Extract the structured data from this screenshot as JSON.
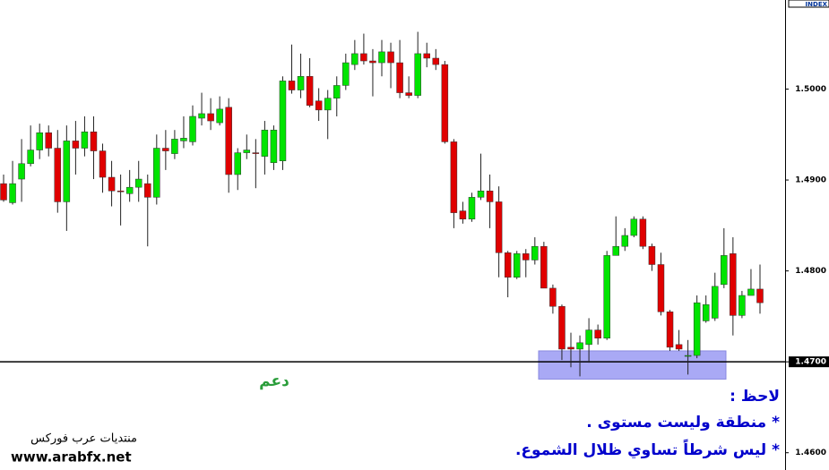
{
  "chart_data": {
    "type": "candlestick",
    "axis_label": "INDEX",
    "open": [
      1.4896,
      1.4875,
      1.4901,
      1.4918,
      1.4933,
      1.4952,
      1.4935,
      1.4876,
      1.4943,
      1.4935,
      1.4953,
      1.4932,
      1.4903,
      1.4888,
      1.4885,
      1.4892,
      1.4896,
      1.4881,
      1.4935,
      1.4929,
      1.4943,
      1.4942,
      1.4968,
      1.4973,
      1.4963,
      1.498,
      1.4906,
      1.493,
      1.493,
      1.4926,
      1.4919,
      1.4921,
      1.5009,
      1.4999,
      1.5014,
      1.4987,
      1.4977,
      1.499,
      1.5004,
      1.5027,
      1.5039,
      1.5031,
      1.5029,
      1.5041,
      1.5029,
      1.4996,
      1.4993,
      1.5039,
      1.5034,
      1.5027,
      1.4942,
      1.4866,
      1.4857,
      1.4881,
      1.4888,
      1.4876,
      1.482,
      1.4793,
      1.4819,
      1.4812,
      1.4827,
      1.4781,
      1.4761,
      1.4716,
      1.4714,
      1.4719,
      1.4735,
      1.4726,
      1.4817,
      1.4827,
      1.4839,
      1.4857,
      1.4827,
      1.4807,
      1.4755,
      1.4719,
      1.4706,
      1.4707,
      1.4745,
      1.4748,
      1.4785,
      1.4819,
      1.4751,
      1.4773,
      1.478
    ],
    "high": [
      1.4906,
      1.4921,
      1.4945,
      1.496,
      1.4962,
      1.496,
      1.4955,
      1.496,
      1.4965,
      1.497,
      1.497,
      1.494,
      1.4921,
      1.4906,
      1.4911,
      1.4921,
      1.4906,
      1.495,
      1.4955,
      1.4955,
      1.497,
      1.4982,
      1.4996,
      1.499,
      1.4992,
      1.499,
      1.4935,
      1.495,
      1.4945,
      1.4965,
      1.496,
      1.5014,
      1.5049,
      1.5039,
      1.5034,
      1.5001,
      1.4999,
      1.5014,
      1.5039,
      1.5054,
      1.5061,
      1.5044,
      1.5054,
      1.5051,
      1.5054,
      1.5014,
      1.5063,
      1.5051,
      1.5044,
      1.5031,
      1.4945,
      1.4876,
      1.4886,
      1.4929,
      1.4906,
      1.4893,
      1.4822,
      1.4822,
      1.4824,
      1.4837,
      1.4832,
      1.4785,
      1.4763,
      1.4732,
      1.4729,
      1.4748,
      1.4741,
      1.4822,
      1.486,
      1.4847,
      1.486,
      1.486,
      1.483,
      1.482,
      1.4757,
      1.4735,
      1.4724,
      1.4773,
      1.4773,
      1.4798,
      1.4847,
      1.4837,
      1.4778,
      1.4802,
      1.4807
    ],
    "low": [
      1.4876,
      1.4873,
      1.4876,
      1.4915,
      1.4923,
      1.4926,
      1.4864,
      1.4844,
      1.4906,
      1.4926,
      1.4901,
      1.4886,
      1.4871,
      1.485,
      1.4876,
      1.4876,
      1.4827,
      1.4873,
      1.4911,
      1.4923,
      1.4935,
      1.4938,
      1.496,
      1.4955,
      1.496,
      1.4886,
      1.4889,
      1.4923,
      1.4891,
      1.4906,
      1.4911,
      1.4911,
      1.4995,
      1.499,
      1.498,
      1.4965,
      1.4945,
      1.497,
      1.4999,
      1.5021,
      1.5027,
      1.4992,
      1.5014,
      1.5001,
      1.499,
      1.499,
      1.499,
      1.5024,
      1.5021,
      1.494,
      1.4847,
      1.4852,
      1.4854,
      1.4878,
      1.4847,
      1.4793,
      1.4771,
      1.4791,
      1.4793,
      1.4807,
      1.4781,
      1.4753,
      1.4702,
      1.4694,
      1.4684,
      1.4699,
      1.4719,
      1.4724,
      1.4817,
      1.4822,
      1.4837,
      1.4824,
      1.48,
      1.4751,
      1.4712,
      1.4712,
      1.4686,
      1.4704,
      1.4743,
      1.4745,
      1.4781,
      1.4729,
      1.4748,
      1.4773,
      1.4753
    ],
    "close": [
      1.4878,
      1.4896,
      1.4918,
      1.4933,
      1.4952,
      1.4935,
      1.4876,
      1.4943,
      1.4935,
      1.4953,
      1.4932,
      1.4903,
      1.4888,
      1.4887,
      1.4892,
      1.4901,
      1.4881,
      1.4935,
      1.4932,
      1.4945,
      1.4946,
      1.497,
      1.4973,
      1.4965,
      1.4978,
      1.4906,
      1.493,
      1.4933,
      1.4929,
      1.4955,
      1.4955,
      1.5009,
      1.4999,
      1.5014,
      1.4982,
      1.4977,
      1.499,
      1.5004,
      1.5029,
      1.5039,
      1.5031,
      1.5029,
      1.5041,
      1.5029,
      1.4996,
      1.4993,
      1.5039,
      1.5034,
      1.5027,
      1.4942,
      1.4864,
      1.4857,
      1.4881,
      1.4888,
      1.4876,
      1.482,
      1.4793,
      1.4819,
      1.4812,
      1.4827,
      1.4781,
      1.4761,
      1.4714,
      1.4714,
      1.4721,
      1.4735,
      1.4726,
      1.4817,
      1.4827,
      1.4839,
      1.4857,
      1.4827,
      1.4807,
      1.4755,
      1.4716,
      1.4714,
      1.4707,
      1.4765,
      1.4763,
      1.4783,
      1.4817,
      1.4751,
      1.4773,
      1.478,
      1.4765
    ],
    "up_color": "#00e400",
    "down_color": "#e00000",
    "ylim": [
      1.4581,
      1.5098
    ],
    "yticks": [
      {
        "value": 1.46,
        "label": "1.4600"
      },
      {
        "value": 1.47,
        "label": "1.4700"
      },
      {
        "value": 1.48,
        "label": "1.4800"
      },
      {
        "value": 1.49,
        "label": "1.4900"
      },
      {
        "value": 1.5,
        "label": "1.5000"
      }
    ],
    "support_line": 1.47,
    "support_zone": [
      1.4681,
      1.4712
    ],
    "support_zone_color": "#a9a9f5"
  },
  "annotations": {
    "support": "دعم",
    "note_title": "لاحظ :",
    "notes": [
      "* منطقة وليست مستوى .",
      "* ليس شرطاً تساوي ظلال الشموع."
    ]
  },
  "watermark": {
    "name": "منتديات عرب فوركس",
    "url": "www.arabfx.net"
  }
}
